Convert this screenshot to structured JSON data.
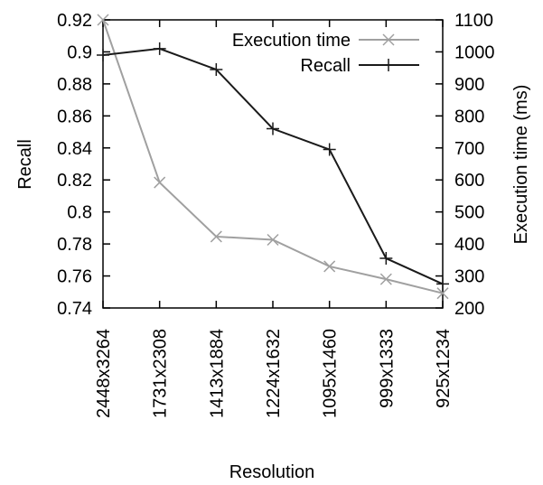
{
  "chart_data": {
    "type": "line",
    "title": "",
    "xlabel": "Resolution",
    "ylabel": "Recall",
    "y2label": "Execution time (ms)",
    "categories": [
      "2448x3264",
      "1731x2308",
      "1413x1884",
      "1224x1632",
      "1095x1460",
      "999x1333",
      "925x1234"
    ],
    "ylim": [
      0.74,
      0.92
    ],
    "y2lim": [
      200,
      1100
    ],
    "yticks": [
      "0.74",
      "0.76",
      "0.78",
      "0.8",
      "0.82",
      "0.84",
      "0.86",
      "0.88",
      "0.9",
      "0.92"
    ],
    "y2ticks": [
      "200",
      "300",
      "400",
      "500",
      "600",
      "700",
      "800",
      "900",
      "1000",
      "1100"
    ],
    "grid": false,
    "legend_position": "top-right",
    "series": [
      {
        "name": "Execution time",
        "axis": "right",
        "color": "#a0a0a0",
        "marker": "x",
        "values": [
          1100,
          592,
          423,
          413,
          330,
          290,
          246
        ]
      },
      {
        "name": "Recall",
        "axis": "left",
        "color": "#1a1a1a",
        "marker": "+",
        "values": [
          0.898,
          0.902,
          0.889,
          0.852,
          0.839,
          0.771,
          0.755
        ]
      }
    ]
  }
}
